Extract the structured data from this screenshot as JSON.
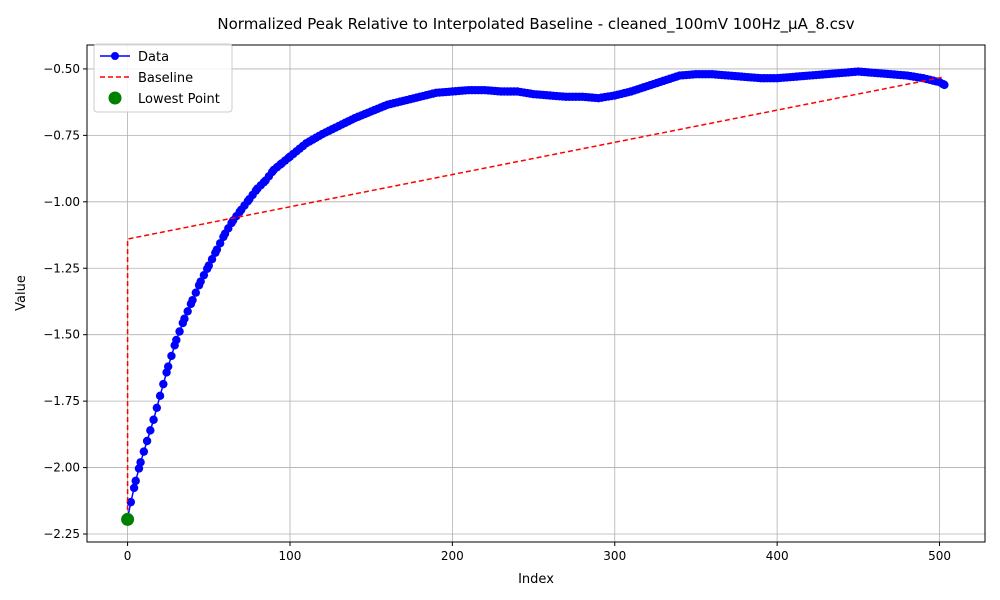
{
  "chart_data": {
    "type": "line",
    "title": "Normalized Peak Relative to Interpolated Baseline - cleaned_100mV 100Hz_µA_8.csv",
    "xlabel": "Index",
    "ylabel": "Value",
    "xlim": [
      -25,
      528
    ],
    "ylim": [
      -2.28,
      -0.41
    ],
    "xticks": [
      0,
      100,
      200,
      300,
      400,
      500
    ],
    "xtick_labels": [
      "0",
      "100",
      "200",
      "300",
      "400",
      "500"
    ],
    "yticks": [
      -2.25,
      -2.0,
      -1.75,
      -1.5,
      -1.25,
      -1.0,
      -0.75,
      -0.5
    ],
    "ytick_labels": [
      "−2.25",
      "−2.00",
      "−1.75",
      "−1.50",
      "−1.25",
      "−1.00",
      "−0.75",
      "−0.50"
    ],
    "grid": true,
    "legend": {
      "position": "top-left",
      "entries": [
        "Data",
        "Baseline",
        "Lowest Point"
      ]
    },
    "series": [
      {
        "name": "Data",
        "color": "#0000ff",
        "style": "line-markers",
        "x": [
          0,
          2,
          5,
          8,
          12,
          16,
          20,
          25,
          30,
          35,
          40,
          45,
          50,
          55,
          60,
          65,
          70,
          75,
          80,
          85,
          90,
          95,
          100,
          110,
          120,
          130,
          140,
          150,
          160,
          170,
          180,
          190,
          200,
          210,
          220,
          230,
          240,
          250,
          260,
          270,
          280,
          290,
          300,
          310,
          320,
          330,
          340,
          350,
          360,
          370,
          380,
          390,
          400,
          410,
          420,
          430,
          440,
          450,
          460,
          470,
          480,
          490,
          500,
          503
        ],
        "y": [
          -2.19,
          -2.13,
          -2.05,
          -1.98,
          -1.9,
          -1.82,
          -1.73,
          -1.62,
          -1.52,
          -1.44,
          -1.37,
          -1.3,
          -1.24,
          -1.18,
          -1.12,
          -1.07,
          -1.03,
          -0.99,
          -0.95,
          -0.92,
          -0.88,
          -0.855,
          -0.83,
          -0.78,
          -0.745,
          -0.715,
          -0.685,
          -0.66,
          -0.635,
          -0.62,
          -0.605,
          -0.59,
          -0.585,
          -0.58,
          -0.58,
          -0.585,
          -0.585,
          -0.595,
          -0.6,
          -0.605,
          -0.605,
          -0.61,
          -0.6,
          -0.585,
          -0.565,
          -0.545,
          -0.525,
          -0.52,
          -0.52,
          -0.525,
          -0.53,
          -0.535,
          -0.535,
          -0.53,
          -0.525,
          -0.52,
          -0.515,
          -0.51,
          -0.515,
          -0.52,
          -0.525,
          -0.535,
          -0.55,
          -0.56
        ]
      },
      {
        "name": "Baseline",
        "color": "#ff0000",
        "style": "dashed",
        "x": [
          0,
          0,
          503
        ],
        "y": [
          -2.19,
          -1.14,
          -0.53
        ]
      },
      {
        "name": "Lowest Point",
        "color": "#008000",
        "style": "scatter",
        "x": [
          0
        ],
        "y": [
          -2.195
        ]
      }
    ]
  }
}
